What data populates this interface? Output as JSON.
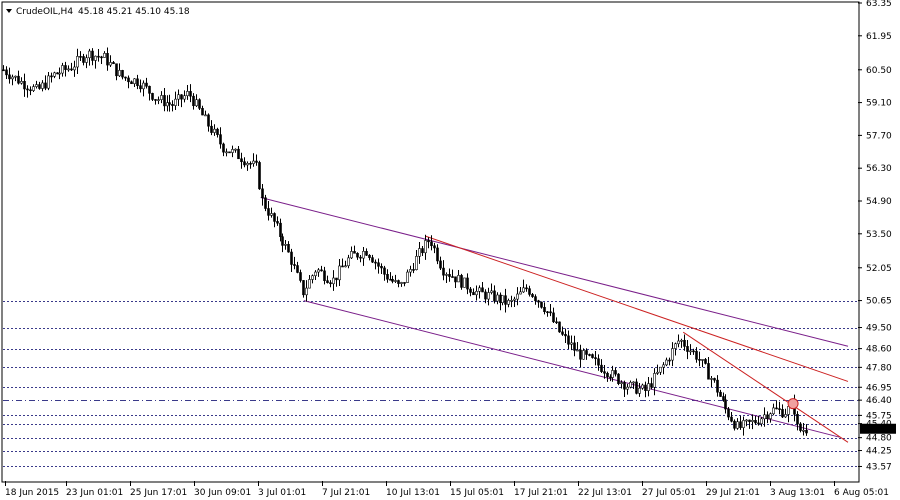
{
  "header": {
    "symbol": "CrudeOIL,H4",
    "ohlc": "45.18 45.21 45.10 45.18"
  },
  "chart_data": {
    "type": "candlestick",
    "title": "CrudeOIL,H4",
    "ylim": [
      42.95,
      63.35
    ],
    "y_ticks": [
      "63.35",
      "61.95",
      "60.50",
      "59.10",
      "57.70",
      "56.30",
      "54.90",
      "53.50",
      "52.05",
      "50.65",
      "49.50",
      "48.60",
      "47.80",
      "46.95",
      "46.40",
      "45.75",
      "45.40",
      "44.80",
      "44.25",
      "43.57"
    ],
    "x_ticks": [
      "18 Jun 2015",
      "23 Jun 01:01",
      "25 Jun 17:01",
      "30 Jun 09:01",
      "3 Jul 01:01",
      "7 Jul 21:01",
      "10 Jul 13:01",
      "15 Jul 05:01",
      "17 Jul 21:01",
      "22 Jul 13:01",
      "27 Jul 05:01",
      "29 Jul 21:01",
      "3 Aug 13:01",
      "6 Aug 05:01"
    ],
    "current_price": 45.18,
    "levels": [
      {
        "price": 50.65,
        "style": "dotted",
        "color": "#3a3a8a"
      },
      {
        "price": 49.5,
        "style": "dotted",
        "color": "#3a3a8a"
      },
      {
        "price": 48.6,
        "style": "dotted",
        "color": "#3a3a8a"
      },
      {
        "price": 47.8,
        "style": "dotted",
        "color": "#3a3a8a"
      },
      {
        "price": 46.95,
        "style": "dotted",
        "color": "#3a3a8a"
      },
      {
        "price": 46.4,
        "style": "dashdot",
        "color": "#3a3a8a"
      },
      {
        "price": 45.75,
        "style": "dotted",
        "color": "#3a3a8a"
      },
      {
        "price": 45.4,
        "style": "dotted",
        "color": "#3a3a8a"
      },
      {
        "price": 44.8,
        "style": "dotted",
        "color": "#3a3a8a"
      },
      {
        "price": 44.25,
        "style": "dotted",
        "color": "#3a3a8a"
      },
      {
        "price": 43.57,
        "style": "dotted",
        "color": "#3a3a8a"
      }
    ],
    "trendlines": [
      {
        "name": "channel-top",
        "color": "#7a1f8a",
        "from": {
          "bar": 0.305,
          "price": 55.05
        },
        "to": {
          "bar": 1.0,
          "price": 48.7
        }
      },
      {
        "name": "channel-bottom",
        "color": "#7a1f8a",
        "from": {
          "bar": 0.356,
          "price": 50.65
        },
        "to": {
          "bar": 0.99,
          "price": 44.82
        }
      },
      {
        "name": "trend-red-1",
        "color": "#cc2222",
        "from": {
          "bar": 0.5,
          "price": 53.4
        },
        "to": {
          "bar": 1.0,
          "price": 47.2
        }
      },
      {
        "name": "trend-red-2",
        "color": "#cc2222",
        "from": {
          "bar": 0.805,
          "price": 49.3
        },
        "to": {
          "bar": 1.0,
          "price": 44.6
        }
      }
    ],
    "series": [
      {
        "segment": 1,
        "points": [
          [
            0,
            60.5
          ],
          [
            0.02,
            60.0
          ],
          [
            0.04,
            59.6
          ],
          [
            0.06,
            60.3
          ],
          [
            0.08,
            60.6
          ],
          [
            0.1,
            61.2
          ],
          [
            0.12,
            61.0
          ],
          [
            0.14,
            60.2
          ],
          [
            0.16,
            60.0
          ],
          [
            0.18,
            59.3
          ],
          [
            0.2,
            59.0
          ],
          [
            0.22,
            59.5
          ],
          [
            0.24,
            58.3
          ],
          [
            0.26,
            57.2
          ],
          [
            0.28,
            56.8
          ],
          [
            0.3,
            56.3
          ],
          [
            0.305,
            55.0
          ],
          [
            0.32,
            54.0
          ],
          [
            0.34,
            52.5
          ],
          [
            0.355,
            51.0
          ],
          [
            0.37,
            52.0
          ],
          [
            0.39,
            51.5
          ],
          [
            0.41,
            52.5
          ],
          [
            0.43,
            52.8
          ],
          [
            0.45,
            51.8
          ],
          [
            0.47,
            51.2
          ],
          [
            0.49,
            52.5
          ],
          [
            0.505,
            53.3
          ],
          [
            0.52,
            52.0
          ],
          [
            0.54,
            51.5
          ],
          [
            0.56,
            51.0
          ],
          [
            0.58,
            50.8
          ],
          [
            0.6,
            50.5
          ],
          [
            0.62,
            51.2
          ],
          [
            0.64,
            50.4
          ],
          [
            0.66,
            49.2
          ],
          [
            0.68,
            48.4
          ],
          [
            0.7,
            48.0
          ],
          [
            0.72,
            47.5
          ],
          [
            0.74,
            47.0
          ],
          [
            0.76,
            46.8
          ],
          [
            0.78,
            47.8
          ],
          [
            0.8,
            49.0
          ],
          [
            0.82,
            48.3
          ],
          [
            0.84,
            47.2
          ],
          [
            0.855,
            46.0
          ],
          [
            0.87,
            45.2
          ],
          [
            0.89,
            45.5
          ],
          [
            0.91,
            46.0
          ],
          [
            0.925,
            45.9
          ],
          [
            0.935,
            46.2
          ],
          [
            0.94,
            45.1
          ],
          [
            0.95,
            45.18
          ]
        ]
      }
    ]
  }
}
